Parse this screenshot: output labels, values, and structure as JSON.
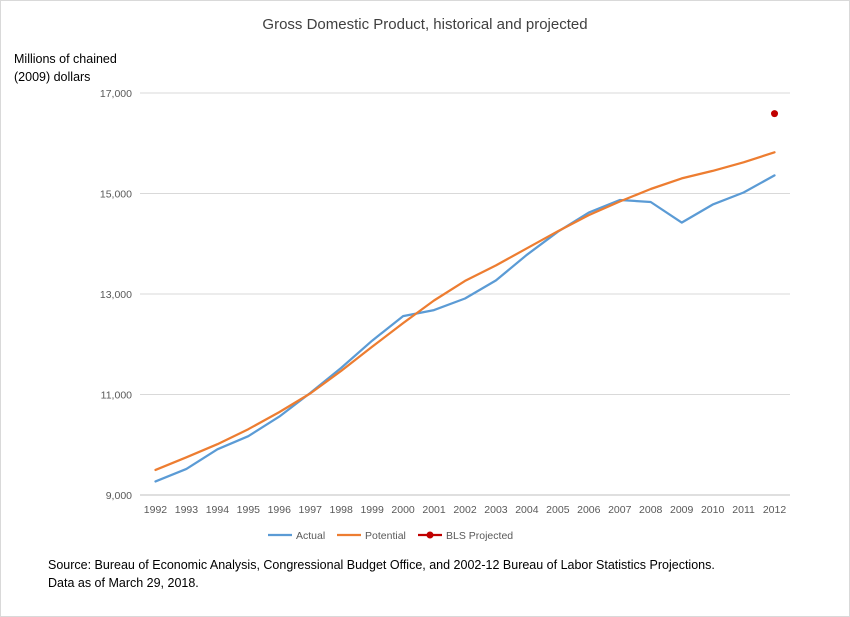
{
  "chart_data": {
    "type": "line",
    "title": "Gross Domestic Product, historical and projected",
    "ylabel_lines": [
      "Millions of chained",
      "(2009) dollars"
    ],
    "xlabel": "",
    "x": [
      "1992",
      "1993",
      "1994",
      "1995",
      "1996",
      "1997",
      "1998",
      "1999",
      "2000",
      "2001",
      "2002",
      "2003",
      "2004",
      "2005",
      "2006",
      "2007",
      "2008",
      "2009",
      "2010",
      "2011",
      "2012"
    ],
    "ylim": [
      9000,
      17000
    ],
    "yticks": [
      9000,
      11000,
      13000,
      15000,
      17000
    ],
    "ytick_labels": [
      "9,000",
      "11,000",
      "13,000",
      "15,000",
      "17,000"
    ],
    "grid": true,
    "legend_position": "bottom",
    "series": [
      {
        "name": "Actual",
        "color": "#5b9bd5",
        "marker": "none",
        "values": [
          9270,
          9520,
          9910,
          10170,
          10560,
          11030,
          11530,
          12070,
          12560,
          12680,
          12910,
          13270,
          13780,
          14240,
          14620,
          14870,
          14830,
          14420,
          14780,
          15020,
          15360
        ]
      },
      {
        "name": "Potential",
        "color": "#ed7d31",
        "marker": "none",
        "values": [
          9500,
          9750,
          10010,
          10310,
          10650,
          11020,
          11470,
          11950,
          12420,
          12870,
          13260,
          13570,
          13910,
          14250,
          14570,
          14840,
          15090,
          15300,
          15450,
          15620,
          15820
        ]
      },
      {
        "name": "BLS Projected",
        "color": "#c00000",
        "marker": "circle",
        "points": [
          {
            "x": "2012",
            "y": 16590
          }
        ]
      }
    ]
  },
  "source_lines": [
    "Source: Bureau of Economic Analysis, Congressional Budget Office, and 2002-12 Bureau of Labor Statistics Projections.",
    "Data as of March 29, 2018."
  ]
}
